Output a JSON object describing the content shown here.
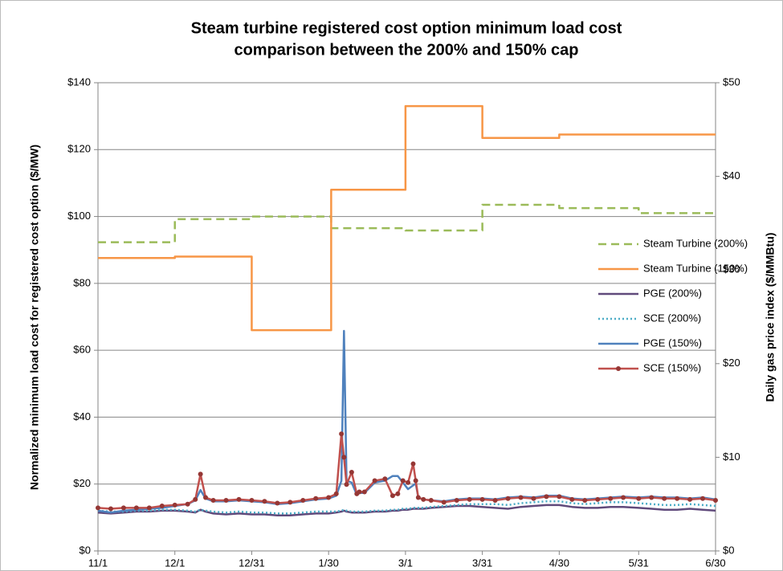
{
  "chart_data": {
    "type": "line",
    "title": [
      "Steam turbine registered cost option minimum load cost",
      "comparison between the 200% and 150% cap"
    ],
    "ylabel": "Normalized minimum load cost for registered cost option ($/MW)",
    "y2label": "Daily gas price index ($/MMBtu)",
    "x": [
      "11/1",
      "11/6",
      "11/11",
      "11/16",
      "11/21",
      "11/26",
      "12/1",
      "12/6",
      "12/9",
      "12/11",
      "12/13",
      "12/16",
      "12/21",
      "12/26",
      "12/31",
      "1/5",
      "1/10",
      "1/15",
      "1/20",
      "1/25",
      "1/30",
      "2/2",
      "2/4",
      "2/5",
      "2/6",
      "2/8",
      "2/10",
      "2/11",
      "2/13",
      "2/17",
      "2/21",
      "2/24",
      "2/26",
      "2/28",
      "3/2",
      "3/4",
      "3/5",
      "3/6",
      "3/8",
      "3/11",
      "3/16",
      "3/21",
      "3/26",
      "3/31",
      "4/5",
      "4/10",
      "4/15",
      "4/20",
      "4/25",
      "4/30",
      "5/5",
      "5/10",
      "5/15",
      "5/20",
      "5/25",
      "5/31",
      "6/5",
      "6/10",
      "6/15",
      "6/20",
      "6/25",
      "6/30"
    ],
    "xlim": [
      "11/1",
      "6/30"
    ],
    "xticks": [
      "11/1",
      "12/1",
      "12/31",
      "1/30",
      "3/1",
      "3/31",
      "4/30",
      "5/31",
      "6/30"
    ],
    "ylim": [
      0,
      140
    ],
    "yticks": [
      {
        "value": 0,
        "label": "$0"
      },
      {
        "value": 20,
        "label": "$20"
      },
      {
        "value": 40,
        "label": "$40"
      },
      {
        "value": 60,
        "label": "$60"
      },
      {
        "value": 80,
        "label": "$80"
      },
      {
        "value": 100,
        "label": "$100"
      },
      {
        "value": 120,
        "label": "$120"
      },
      {
        "value": 140,
        "label": "$140"
      }
    ],
    "y2lim": [
      0,
      50
    ],
    "y2ticks": [
      {
        "value": 0,
        "label": "$0"
      },
      {
        "value": 10,
        "label": "$10"
      },
      {
        "value": 20,
        "label": "$20"
      },
      {
        "value": 30,
        "label": "$30"
      },
      {
        "value": 40,
        "label": "$40"
      },
      {
        "value": 50,
        "label": "$50"
      }
    ],
    "grid": true,
    "legend": "right",
    "series": [
      {
        "name": "Steam Turbine (200%)",
        "color": "#9bbb59",
        "dash": "dashed",
        "step": true,
        "x": [
          "11/1",
          "12/1",
          "12/31",
          "1/31",
          "3/1",
          "3/31",
          "4/30",
          "5/31",
          "6/30"
        ],
        "values": [
          92.3,
          99.2,
          100,
          96.5,
          95.8,
          103.5,
          102.5,
          101,
          101
        ]
      },
      {
        "name": "Steam Turbine (150%)",
        "color": "#f79646",
        "step": true,
        "x": [
          "11/1",
          "12/1",
          "12/31",
          "1/31",
          "3/1",
          "3/31",
          "4/30",
          "6/30"
        ],
        "values": [
          87.6,
          88,
          66,
          108,
          133,
          123.5,
          124.5,
          124.5
        ]
      },
      {
        "name": "PGE (200%)",
        "color": "#604a7b",
        "axis": "y2",
        "values": [
          4.1,
          4.0,
          4.1,
          4.2,
          4.2,
          4.3,
          4.3,
          4.2,
          4.1,
          4.4,
          4.2,
          4.0,
          3.9,
          4.0,
          3.9,
          3.9,
          3.8,
          3.8,
          3.9,
          4.0,
          4.0,
          4.1,
          4.2,
          4.3,
          4.2,
          4.1,
          4.1,
          4.1,
          4.1,
          4.2,
          4.2,
          4.3,
          4.3,
          4.4,
          4.4,
          4.5,
          4.5,
          4.5,
          4.5,
          4.6,
          4.7,
          4.8,
          4.8,
          4.7,
          4.6,
          4.5,
          4.7,
          4.8,
          4.9,
          4.9,
          4.7,
          4.6,
          4.6,
          4.7,
          4.7,
          4.6,
          4.5,
          4.4,
          4.4,
          4.5,
          4.4,
          4.3
        ]
      },
      {
        "name": "SCE (200%)",
        "color": "#4bacc6",
        "dash": "dotted",
        "axis": "y2",
        "values": [
          4.3,
          4.2,
          4.2,
          4.3,
          4.3,
          4.4,
          4.4,
          4.3,
          4.2,
          4.4,
          4.3,
          4.2,
          4.1,
          4.2,
          4.1,
          4.1,
          4.0,
          4.0,
          4.1,
          4.2,
          4.2,
          4.2,
          4.3,
          4.4,
          4.3,
          4.2,
          4.2,
          4.2,
          4.2,
          4.3,
          4.3,
          4.4,
          4.4,
          4.5,
          4.5,
          4.6,
          4.6,
          4.6,
          4.6,
          4.7,
          4.8,
          4.9,
          5.0,
          5.0,
          5.0,
          4.9,
          5.1,
          5.2,
          5.3,
          5.3,
          5.1,
          5.0,
          5.1,
          5.2,
          5.2,
          5.1,
          5.0,
          4.9,
          4.9,
          5.0,
          4.9,
          4.8
        ]
      },
      {
        "name": "PGE (150%)",
        "color": "#4f81bd",
        "axis": "y2",
        "values": [
          4.3,
          4.1,
          4.3,
          4.4,
          4.5,
          4.6,
          4.8,
          5.0,
          5.4,
          6.5,
          5.6,
          5.3,
          5.3,
          5.4,
          5.3,
          5.2,
          5.0,
          5.1,
          5.3,
          5.5,
          5.6,
          5.9,
          7.5,
          23.5,
          7.5,
          7.3,
          6.0,
          6.2,
          6.2,
          7.3,
          7.5,
          8.0,
          8.0,
          7.3,
          6.6,
          7.0,
          7.2,
          5.7,
          5.5,
          5.4,
          5.3,
          5.5,
          5.6,
          5.6,
          5.5,
          5.7,
          5.8,
          5.7,
          5.9,
          5.9,
          5.6,
          5.5,
          5.6,
          5.7,
          5.8,
          5.7,
          5.8,
          5.7,
          5.7,
          5.6,
          5.7,
          5.5
        ]
      },
      {
        "name": "SCE (150%)",
        "color": "#c0504d",
        "marker": "#953735",
        "axis": "y2",
        "values": [
          4.6,
          4.5,
          4.6,
          4.6,
          4.6,
          4.8,
          4.9,
          5.0,
          5.5,
          8.2,
          5.7,
          5.4,
          5.4,
          5.5,
          5.4,
          5.3,
          5.1,
          5.2,
          5.4,
          5.6,
          5.7,
          6.1,
          12.5,
          10.0,
          7.1,
          8.4,
          6.1,
          6.3,
          6.3,
          7.5,
          7.7,
          5.9,
          6.1,
          7.5,
          7.3,
          9.3,
          7.5,
          5.7,
          5.5,
          5.4,
          5.2,
          5.4,
          5.5,
          5.5,
          5.4,
          5.6,
          5.7,
          5.6,
          5.8,
          5.8,
          5.5,
          5.4,
          5.5,
          5.6,
          5.7,
          5.6,
          5.7,
          5.6,
          5.6,
          5.5,
          5.6,
          5.4
        ]
      }
    ]
  }
}
